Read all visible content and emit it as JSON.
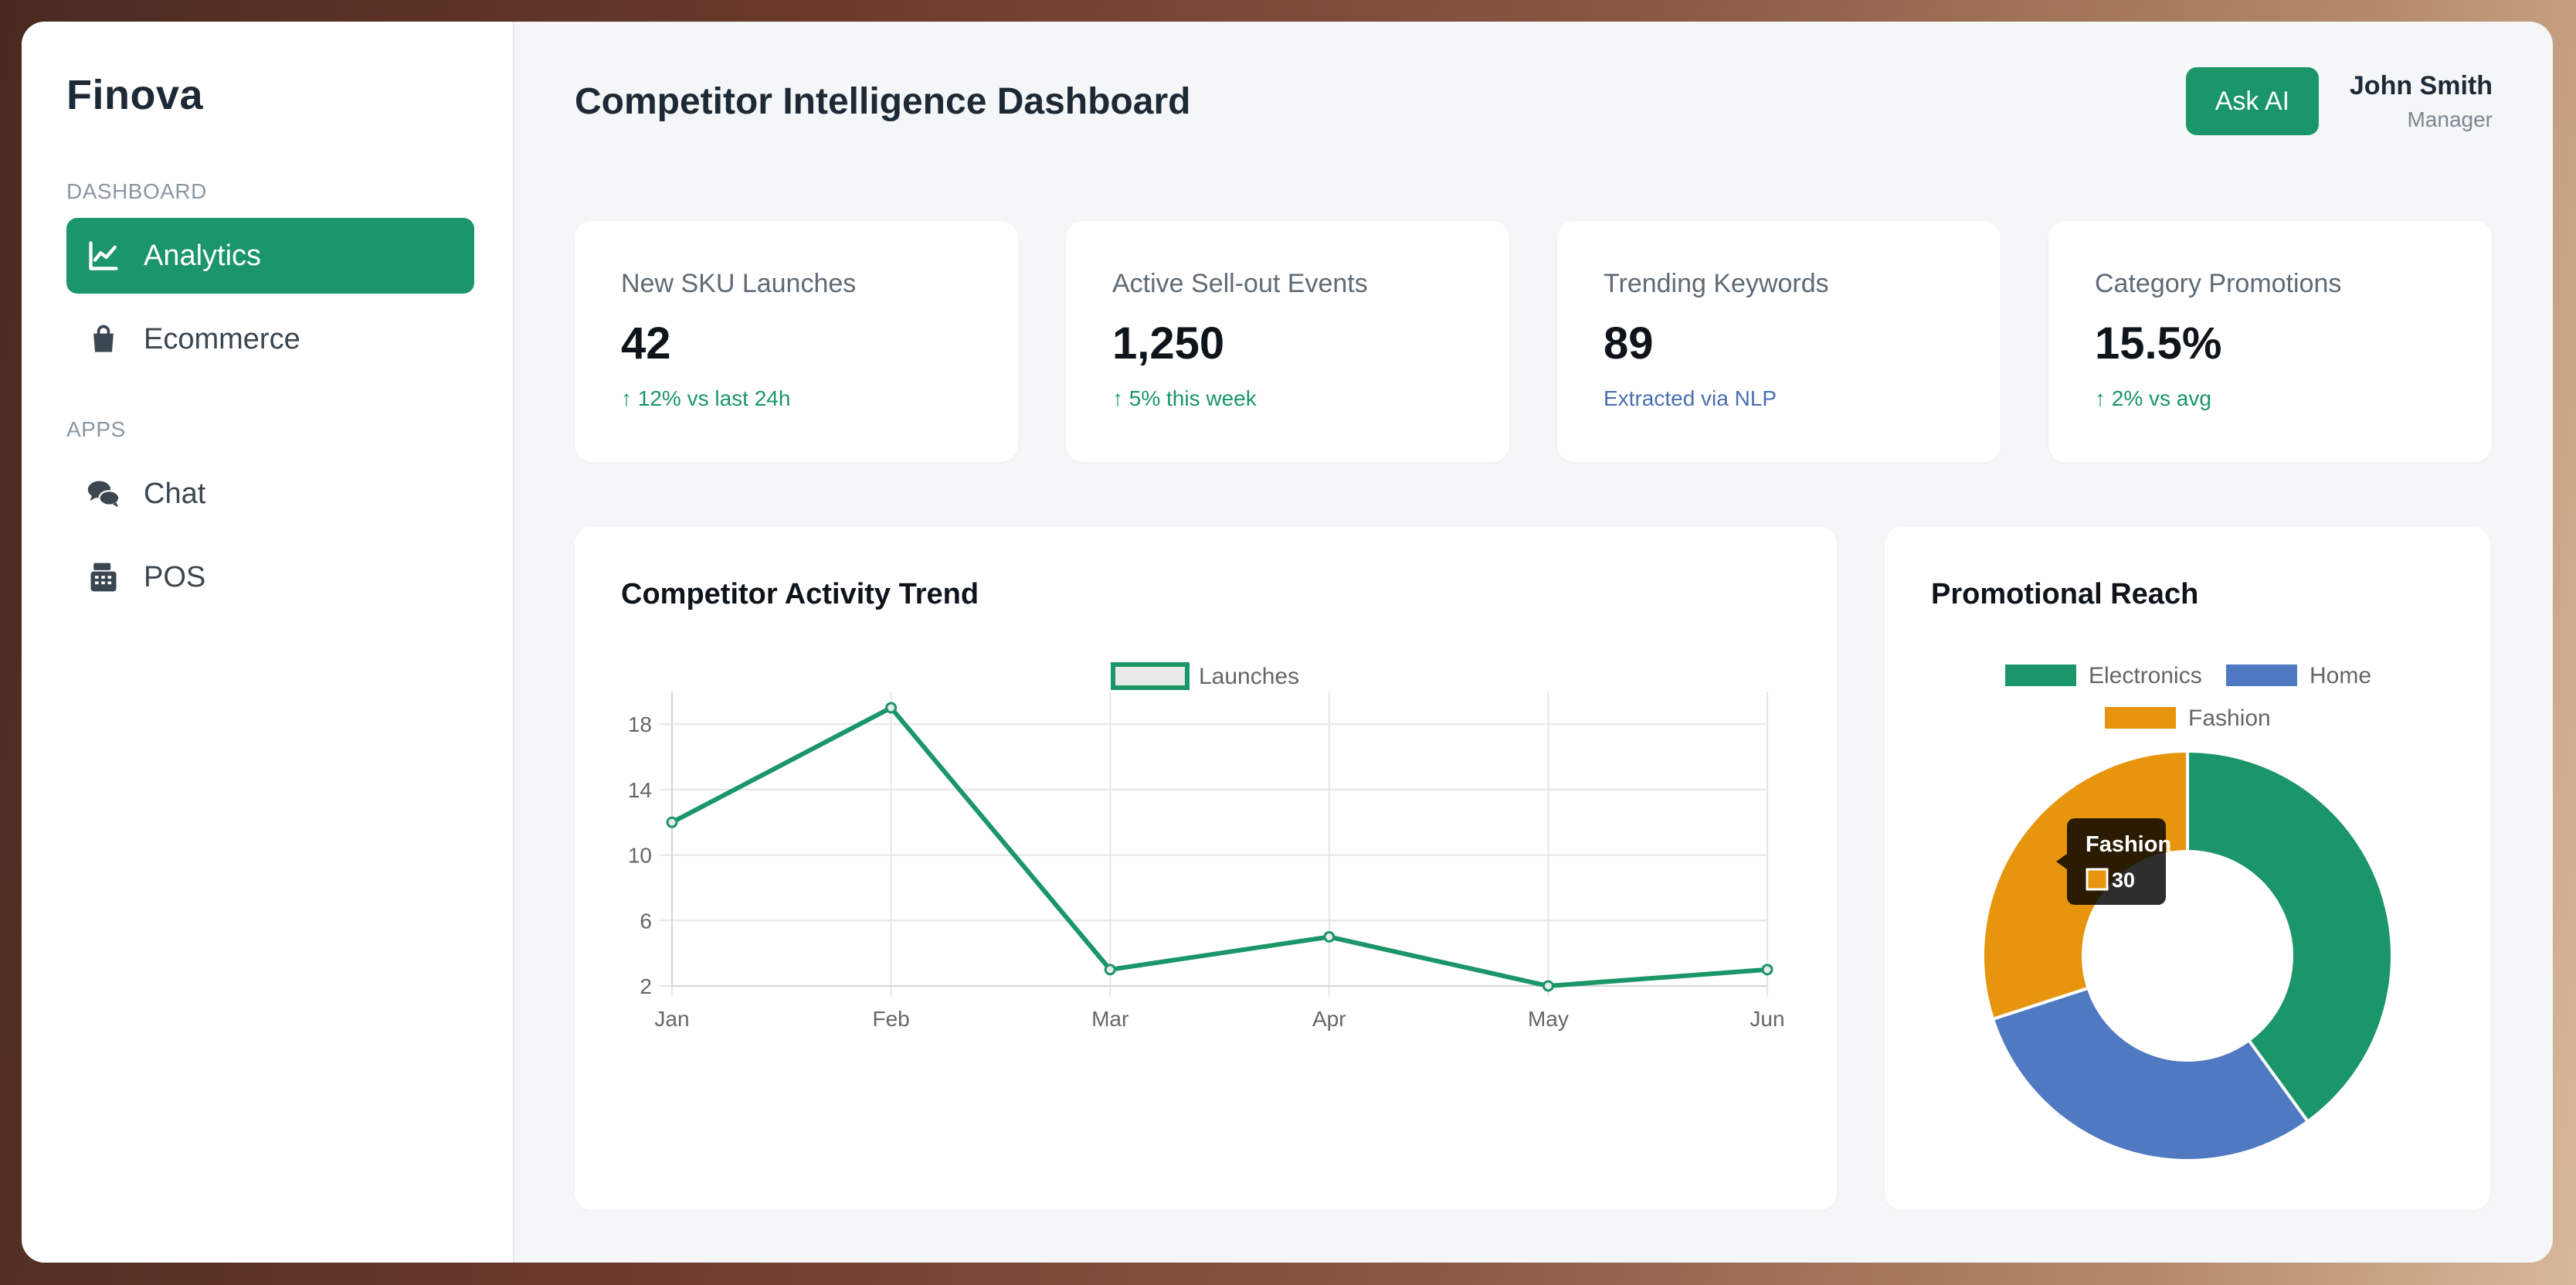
{
  "app": {
    "brand": "Finova"
  },
  "sidebar": {
    "sections": [
      {
        "label": "DASHBOARD",
        "items": [
          {
            "label": "Analytics",
            "icon": "line-chart-icon",
            "active": true
          },
          {
            "label": "Ecommerce",
            "icon": "shopping-bag-icon",
            "active": false
          }
        ]
      },
      {
        "label": "APPS",
        "items": [
          {
            "label": "Chat",
            "icon": "chat-bubbles-icon",
            "active": false
          },
          {
            "label": "POS",
            "icon": "cash-register-icon",
            "active": false
          }
        ]
      }
    ]
  },
  "header": {
    "title": "Competitor Intelligence Dashboard",
    "ask_button": "Ask AI",
    "user": {
      "name": "John Smith",
      "role": "Manager"
    }
  },
  "kpis": [
    {
      "label": "New SKU Launches",
      "value": "42",
      "note": "↑ 12% vs last 24h",
      "note_color": "#1a9668"
    },
    {
      "label": "Active Sell-out Events",
      "value": "1,250",
      "note": "↑ 5% this week",
      "note_color": "#1a9668"
    },
    {
      "label": "Trending Keywords",
      "value": "89",
      "note": "Extracted via NLP",
      "note_color": "#4a6fb0"
    },
    {
      "label": "Category Promotions",
      "value": "15.5%",
      "note": "↑ 2% vs avg",
      "note_color": "#1a9668"
    }
  ],
  "colors": {
    "accent": "#1a9668",
    "electronics": "#1a9668",
    "home": "#4f79c0",
    "fashion": "#e7950f"
  },
  "chart_data": [
    {
      "type": "line",
      "title": "Competitor Activity Trend",
      "x": [
        "Jan",
        "Feb",
        "Mar",
        "Apr",
        "May",
        "Jun"
      ],
      "series": [
        {
          "name": "Launches",
          "values": [
            12,
            19,
            3,
            5,
            2,
            3
          ]
        }
      ],
      "yticks": [
        2,
        6,
        10,
        14,
        18
      ],
      "ylim": [
        2,
        19
      ],
      "grid": true,
      "legend": "top"
    },
    {
      "type": "pie",
      "title": "Promotional Reach",
      "categories": [
        "Electronics",
        "Home",
        "Fashion"
      ],
      "values": [
        40,
        30,
        30
      ],
      "donut": true,
      "legend": "top",
      "tooltip": {
        "label": "Fashion",
        "value": "30"
      }
    }
  ]
}
